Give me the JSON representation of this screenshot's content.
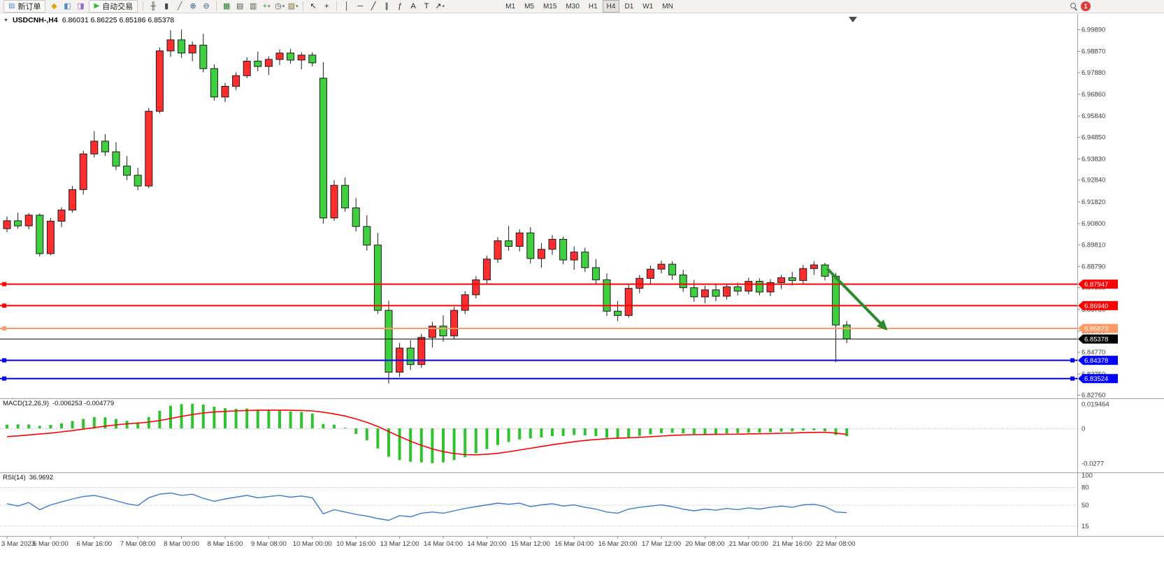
{
  "toolbar": {
    "notification_count": "1",
    "timeframes": [
      "M1",
      "M5",
      "M15",
      "M30",
      "H1",
      "H4",
      "D1",
      "W1",
      "MN"
    ],
    "active_timeframe": "H4",
    "items": [
      {
        "type": "button",
        "name": "new-order-button",
        "glyph": "▤",
        "glyph_color": "#4f86c6",
        "label": "新订单"
      },
      {
        "type": "icon",
        "name": "market-watch-icon",
        "glyph": "◆",
        "color": "#d9a414"
      },
      {
        "type": "icon",
        "name": "navigator-icon",
        "glyph": "◧",
        "color": "#4f86c6"
      },
      {
        "type": "icon",
        "name": "terminal-icon",
        "glyph": "◨",
        "color": "#9066c8"
      },
      {
        "type": "button",
        "name": "autotrading-button",
        "glyph": "▶",
        "glyph_color": "#2eb52e",
        "label": "自动交易"
      },
      {
        "type": "sep"
      },
      {
        "type": "icon",
        "name": "ohlc-bars-icon",
        "glyph": "╫",
        "color": "#444444"
      },
      {
        "type": "icon",
        "name": "candlestick-icon",
        "glyph": "▮",
        "color": "#444444"
      },
      {
        "type": "icon",
        "name": "line-chart-icon",
        "glyph": "╱",
        "color": "#2e7d32"
      },
      {
        "type": "icon",
        "name": "zoom-in-icon",
        "glyph": "⊕",
        "color": "#33557f"
      },
      {
        "type": "icon",
        "name": "zoom-out-icon",
        "glyph": "⊖",
        "color": "#33557f"
      },
      {
        "type": "sep"
      },
      {
        "type": "icon",
        "name": "tile-windows-icon",
        "glyph": "▦",
        "color": "#2e7d32"
      },
      {
        "type": "icon",
        "name": "cascade-windows-icon",
        "glyph": "▤",
        "color": "#555555"
      },
      {
        "type": "icon",
        "name": "arrange-windows-icon",
        "glyph": "▥",
        "color": "#555555"
      },
      {
        "type": "icon",
        "name": "indicators-icon",
        "glyph": "+",
        "color": "#1faa1f",
        "dropdown": true
      },
      {
        "type": "icon",
        "name": "periods-icon",
        "glyph": "◷",
        "color": "#444444",
        "dropdown": true
      },
      {
        "type": "icon",
        "name": "templates-icon",
        "glyph": "▨",
        "color": "#8a6b3a",
        "dropdown": true
      },
      {
        "type": "sep"
      },
      {
        "type": "icon",
        "name": "cursor-icon",
        "glyph": "↖",
        "color": "#222222"
      },
      {
        "type": "icon",
        "name": "crosshair-icon",
        "glyph": "+",
        "color": "#222222"
      },
      {
        "type": "sep"
      },
      {
        "type": "icon",
        "name": "vertical-line-icon",
        "glyph": "│",
        "color": "#222222"
      },
      {
        "type": "icon",
        "name": "horizontal-line-icon",
        "glyph": "─",
        "color": "#222222"
      },
      {
        "type": "icon",
        "name": "trendline-icon",
        "glyph": "╱",
        "color": "#222222"
      },
      {
        "type": "icon",
        "name": "channel-icon",
        "glyph": "∥",
        "color": "#222222"
      },
      {
        "type": "icon",
        "name": "fibonacci-icon",
        "glyph": "ƒ",
        "color": "#222222"
      },
      {
        "type": "icon",
        "name": "text-icon",
        "glyph": "A",
        "color": "#222222"
      },
      {
        "type": "icon",
        "name": "label-icon",
        "glyph": "T",
        "color": "#222222"
      },
      {
        "type": "icon",
        "name": "arrows-tool-icon",
        "glyph": "↗",
        "color": "#222222",
        "dropdown": true
      },
      {
        "type": "tf-group"
      },
      {
        "type": "spacer"
      },
      {
        "type": "search"
      },
      {
        "type": "badge"
      }
    ]
  },
  "chart": {
    "dropdown_glyph": "▼",
    "title": "USDCNH-,H4",
    "ohlc": "6.86031 6.86225 6.85186 6.85378"
  },
  "chart_data": [
    {
      "type": "candlestick",
      "symbol": "USDCNH-",
      "timeframe": "H4",
      "current_bar": {
        "open": 6.86031,
        "high": 6.86225,
        "low": 6.85186,
        "close": 6.85378
      },
      "price_range": {
        "top": 6.9989,
        "bottom": 6.8276
      },
      "colors": {
        "up": "#ff2d2d",
        "down": "#3fd03f"
      },
      "y_axis_labels": [
        "6.99890",
        "6.98870",
        "6.97880",
        "6.96860",
        "6.95840",
        "6.94850",
        "6.93830",
        "6.92840",
        "6.91820",
        "6.90800",
        "6.89810",
        "6.88790",
        "6.87800",
        "6.86780",
        "6.85760",
        "6.84770",
        "6.83750",
        "6.82760"
      ],
      "x_axis_labels": [
        "3 Mar 2023",
        "6 Mar 00:00",
        "6 Mar 16:00",
        "7 Mar 08:00",
        "8 Mar 00:00",
        "8 Mar 16:00",
        "9 Mar 08:00",
        "10 Mar 00:00",
        "10 Mar 16:00",
        "13 Mar 12:00",
        "14 Mar 04:00",
        "14 Mar 20:00",
        "15 Mar 12:00",
        "16 Mar 04:00",
        "16 Mar 20:00",
        "17 Mar 12:00",
        "20 Mar 08:00",
        "21 Mar 00:00",
        "21 Mar 16:00",
        "22 Mar 08:00"
      ],
      "candles": [
        [
          6.9055,
          6.9112,
          6.9038,
          6.9092
        ],
        [
          6.9092,
          6.913,
          6.9055,
          6.9068
        ],
        [
          6.9068,
          6.9128,
          6.9052,
          6.9118
        ],
        [
          6.9118,
          6.9126,
          6.8925,
          6.8938
        ],
        [
          6.8938,
          6.9105,
          6.893,
          6.909
        ],
        [
          6.909,
          6.9155,
          6.9062,
          6.9142
        ],
        [
          6.9142,
          6.9255,
          6.913,
          6.9238
        ],
        [
          6.9238,
          6.942,
          6.9215,
          6.9405
        ],
        [
          6.9405,
          6.9512,
          6.9388,
          6.9465
        ],
        [
          6.9465,
          6.9498,
          6.9395,
          6.9415
        ],
        [
          6.9415,
          6.946,
          6.933,
          6.9348
        ],
        [
          6.9348,
          6.9395,
          6.9282,
          6.9305
        ],
        [
          6.9305,
          6.934,
          6.9235,
          6.9255
        ],
        [
          6.9255,
          6.962,
          6.9245,
          6.9605
        ],
        [
          6.9605,
          6.9905,
          6.9595,
          6.9888
        ],
        [
          6.9888,
          6.9985,
          6.986,
          6.994
        ],
        [
          6.994,
          6.9988,
          6.9855,
          6.9878
        ],
        [
          6.9878,
          6.9932,
          6.984,
          6.9915
        ],
        [
          6.9915,
          6.9968,
          6.9788,
          6.9805
        ],
        [
          6.9805,
          6.9825,
          6.9655,
          6.9672
        ],
        [
          6.9672,
          6.9738,
          6.9648,
          6.9722
        ],
        [
          6.9722,
          6.9788,
          6.9705,
          6.9772
        ],
        [
          6.9772,
          6.9858,
          6.976,
          6.984
        ],
        [
          6.984,
          6.9885,
          6.9792,
          6.9815
        ],
        [
          6.9815,
          6.9862,
          6.9775,
          6.9848
        ],
        [
          6.9848,
          6.9895,
          6.9822,
          6.9878
        ],
        [
          6.9878,
          6.9898,
          6.9828,
          6.9845
        ],
        [
          6.9845,
          6.9882,
          6.9802,
          6.9868
        ],
        [
          6.9868,
          6.9882,
          6.9815,
          6.9832
        ],
        [
          6.976,
          6.9835,
          6.9078,
          6.9105
        ],
        [
          6.9105,
          6.9282,
          6.9092,
          6.9258
        ],
        [
          6.9258,
          6.9295,
          6.9135,
          6.9152
        ],
        [
          6.9152,
          6.9198,
          6.9042,
          6.9065
        ],
        [
          6.9065,
          6.9118,
          6.8952,
          6.8978
        ],
        [
          6.8978,
          6.9035,
          6.8655,
          6.8672
        ],
        [
          6.8672,
          6.8718,
          6.8329,
          6.8382
        ],
        [
          6.8382,
          6.852,
          6.836,
          6.8495
        ],
        [
          6.8495,
          6.8532,
          6.8392,
          6.8418
        ],
        [
          6.8418,
          6.8562,
          6.8402,
          6.8545
        ],
        [
          6.8545,
          6.8618,
          6.8498,
          6.8598
        ],
        [
          6.8598,
          6.8648,
          6.8525,
          6.8552
        ],
        [
          6.8552,
          6.8688,
          6.8538,
          6.8672
        ],
        [
          6.8672,
          6.8762,
          6.8655,
          6.8745
        ],
        [
          6.8745,
          6.8832,
          6.8728,
          6.8815
        ],
        [
          6.8815,
          6.8928,
          6.8798,
          6.8912
        ],
        [
          6.8912,
          6.9015,
          6.8895,
          6.8998
        ],
        [
          6.8998,
          6.9068,
          6.8952,
          6.8972
        ],
        [
          6.8972,
          6.9052,
          6.8948,
          6.9035
        ],
        [
          6.9035,
          6.9062,
          6.8892,
          6.8915
        ],
        [
          6.8915,
          6.8988,
          6.8872,
          6.8958
        ],
        [
          6.8958,
          6.9025,
          6.8932,
          6.9005
        ],
        [
          6.9005,
          6.9018,
          6.8888,
          6.8908
        ],
        [
          6.8908,
          6.8972,
          6.8862,
          6.8945
        ],
        [
          6.8945,
          6.8965,
          6.8852,
          6.8872
        ],
        [
          6.8872,
          6.8912,
          6.8792,
          6.8815
        ],
        [
          6.8815,
          6.8845,
          6.8645,
          6.8668
        ],
        [
          6.8668,
          6.8715,
          6.8622,
          6.8648
        ],
        [
          6.8648,
          6.8792,
          6.8638,
          6.8775
        ],
        [
          6.8775,
          6.8838,
          6.8752,
          6.8822
        ],
        [
          6.8822,
          6.8882,
          6.8795,
          6.8865
        ],
        [
          6.8865,
          6.8905,
          6.8845,
          6.8888
        ],
        [
          6.8888,
          6.8902,
          6.8815,
          6.8838
        ],
        [
          6.8838,
          6.8862,
          6.8758,
          6.8778
        ],
        [
          6.8778,
          6.8815,
          6.8712,
          6.8735
        ],
        [
          6.8735,
          6.8788,
          6.8705,
          6.8768
        ],
        [
          6.8768,
          6.8792,
          6.8715,
          6.8738
        ],
        [
          6.8738,
          6.8798,
          6.8722,
          6.8782
        ],
        [
          6.8782,
          6.8802,
          6.8742,
          6.8762
        ],
        [
          6.8762,
          6.8825,
          6.8748,
          6.8808
        ],
        [
          6.8808,
          6.8822,
          6.8742,
          6.8758
        ],
        [
          6.8758,
          6.8818,
          6.8738,
          6.8802
        ],
        [
          6.8802,
          6.8838,
          6.8772,
          6.8825
        ],
        [
          6.8825,
          6.8852,
          6.8788,
          6.8812
        ],
        [
          6.8812,
          6.8885,
          6.8798,
          6.8868
        ],
        [
          6.8868,
          6.8902,
          6.8838,
          6.8885
        ],
        [
          6.8885,
          6.8895,
          6.8812,
          6.8832
        ],
        [
          6.8832,
          6.8848,
          6.843,
          6.8603
        ],
        [
          6.86031,
          6.86225,
          6.85186,
          6.85378
        ]
      ],
      "hlines": [
        {
          "price": 6.87947,
          "label": "6.87947",
          "color": "#ff0000",
          "width": 2,
          "handles": [
            "left"
          ]
        },
        {
          "price": 6.8694,
          "label": "6.86940",
          "color": "#ff0000",
          "width": 2,
          "handles": [
            "left"
          ]
        },
        {
          "price": 6.85873,
          "label": "6.85873",
          "color": "#ff9966",
          "width": 2,
          "handles": [
            "left"
          ]
        },
        {
          "price": 6.85378,
          "label": "6.85378",
          "color": "#000000",
          "width": 1,
          "role": "bid-price"
        },
        {
          "price": 6.84378,
          "label": "6.84378",
          "color": "#0000ff",
          "width": 2,
          "handles": [
            "left",
            "right"
          ]
        },
        {
          "price": 6.83524,
          "label": "6.83524",
          "color": "#0000ff",
          "width": 2,
          "handles": [
            "left",
            "right"
          ]
        }
      ],
      "annotation_arrow": {
        "x1_bar": 75.2,
        "y1_price": 6.8868,
        "x2_bar": 80.6,
        "y2_price": 6.8585,
        "color": "#2d8a2d",
        "width": 4
      }
    },
    {
      "type": "macd",
      "label": "MACD(12,26,9)",
      "values_label": "-0.006253 -0.004779",
      "scale_labels": [
        "0.019464",
        "0",
        "-0.0277"
      ],
      "colors": {
        "histogram": "#2fc42f",
        "signal": "#ff0000"
      },
      "histogram": [
        0.003,
        0.0032,
        0.0031,
        0.002,
        0.0028,
        0.004,
        0.0058,
        0.0075,
        0.009,
        0.0088,
        0.0075,
        0.006,
        0.0048,
        0.009,
        0.014,
        0.018,
        0.0192,
        0.0195,
        0.019,
        0.0172,
        0.016,
        0.0155,
        0.0158,
        0.015,
        0.0145,
        0.0142,
        0.0135,
        0.013,
        0.0118,
        0.0035,
        0.003,
        0.0005,
        -0.0045,
        -0.0095,
        -0.016,
        -0.0225,
        -0.0252,
        -0.0265,
        -0.027,
        -0.0277,
        -0.027,
        -0.0252,
        -0.0228,
        -0.0198,
        -0.0165,
        -0.0132,
        -0.0108,
        -0.0088,
        -0.008,
        -0.0072,
        -0.0062,
        -0.006,
        -0.0052,
        -0.0055,
        -0.0062,
        -0.0075,
        -0.0082,
        -0.0072,
        -0.006,
        -0.0048,
        -0.0038,
        -0.0035,
        -0.004,
        -0.0046,
        -0.0048,
        -0.0046,
        -0.0042,
        -0.0038,
        -0.0034,
        -0.0034,
        -0.003,
        -0.0026,
        -0.0024,
        -0.0018,
        -0.0015,
        -0.0022,
        -0.0052,
        -0.006253
      ],
      "signal": [
        -0.0065,
        -0.006,
        -0.0052,
        -0.0045,
        -0.0038,
        -0.0028,
        -0.0018,
        -0.0006,
        0.0006,
        0.0018,
        0.0028,
        0.0036,
        0.0042,
        0.005,
        0.0062,
        0.0078,
        0.0095,
        0.011,
        0.0122,
        0.013,
        0.0135,
        0.0139,
        0.0142,
        0.0144,
        0.0145,
        0.0145,
        0.0144,
        0.0142,
        0.0139,
        0.0128,
        0.0115,
        0.0098,
        0.0075,
        0.0048,
        0.0015,
        -0.0025,
        -0.0065,
        -0.0102,
        -0.0135,
        -0.0163,
        -0.0185,
        -0.02,
        -0.0208,
        -0.021,
        -0.0206,
        -0.0198,
        -0.0186,
        -0.0172,
        -0.0158,
        -0.0144,
        -0.013,
        -0.0118,
        -0.0106,
        -0.0096,
        -0.0088,
        -0.0082,
        -0.0078,
        -0.0075,
        -0.0071,
        -0.0066,
        -0.0061,
        -0.0056,
        -0.0052,
        -0.005,
        -0.0049,
        -0.0048,
        -0.0047,
        -0.0046,
        -0.0044,
        -0.0043,
        -0.0041,
        -0.0039,
        -0.0037,
        -0.0034,
        -0.0032,
        -0.0031,
        -0.0038,
        -0.004779
      ]
    },
    {
      "type": "rsi",
      "label": "RSI(14)",
      "value_label": "36.9692",
      "levels": [
        100,
        80,
        50,
        15
      ],
      "color": "#3e79cf",
      "values": [
        52,
        48,
        54,
        42,
        50,
        55,
        60,
        64,
        66,
        62,
        57,
        52,
        49,
        62,
        68,
        70,
        66,
        68,
        61,
        56,
        60,
        63,
        66,
        62,
        64,
        66,
        63,
        65,
        62,
        35,
        42,
        38,
        34,
        31,
        27,
        24,
        32,
        30,
        36,
        38,
        36,
        40,
        44,
        47,
        50,
        53,
        51,
        53,
        47,
        50,
        52,
        48,
        50,
        46,
        43,
        38,
        36,
        43,
        46,
        48,
        50,
        47,
        43,
        40,
        43,
        41,
        44,
        42,
        45,
        43,
        46,
        48,
        46,
        50,
        51,
        47,
        38,
        36.9692
      ]
    }
  ]
}
